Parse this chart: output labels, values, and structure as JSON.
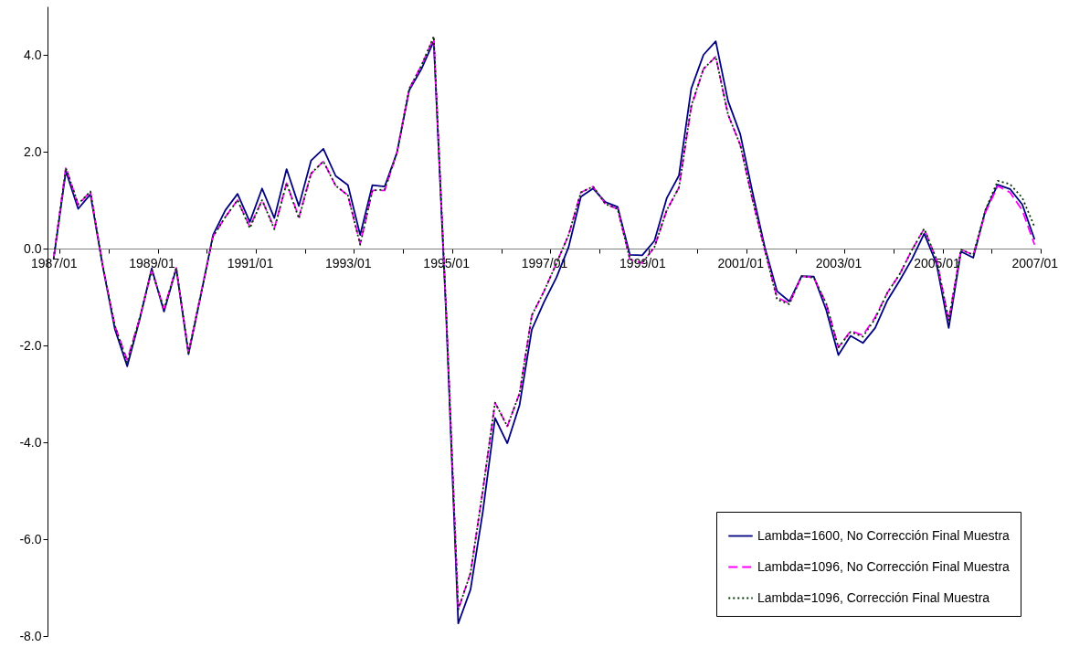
{
  "chart_data": {
    "type": "line",
    "categories": [
      "1987/01",
      null,
      null,
      null,
      null,
      null,
      null,
      null,
      "1989/01",
      null,
      null,
      null,
      null,
      null,
      null,
      null,
      "1991/01",
      null,
      null,
      null,
      null,
      null,
      null,
      null,
      "1993/01",
      null,
      null,
      null,
      null,
      null,
      null,
      null,
      "1995/01",
      null,
      null,
      null,
      null,
      null,
      null,
      null,
      "1997/01",
      null,
      null,
      null,
      null,
      null,
      null,
      null,
      "1999/01",
      null,
      null,
      null,
      null,
      null,
      null,
      null,
      "2001/01",
      null,
      null,
      null,
      null,
      null,
      null,
      null,
      "2003/01",
      null,
      null,
      null,
      null,
      null,
      null,
      null,
      "2005/01",
      null,
      null,
      null,
      null,
      null,
      null,
      null,
      "2007/01"
    ],
    "series": [
      {
        "name": "Lambda=1600, No Corrección Final Muestra",
        "color": "#000080",
        "line_style": "solid",
        "values": [
          -0.22,
          1.6,
          0.82,
          1.12,
          -0.36,
          -1.67,
          -2.43,
          -1.48,
          -0.41,
          -1.3,
          -0.41,
          -2.18,
          -0.97,
          0.28,
          0.79,
          1.13,
          0.55,
          1.24,
          0.63,
          1.64,
          0.88,
          1.82,
          2.06,
          1.5,
          1.31,
          0.28,
          1.31,
          1.28,
          1.98,
          3.27,
          3.71,
          4.28,
          -1.3,
          -7.74,
          -7.04,
          -5.44,
          -3.5,
          -4.02,
          -3.23,
          -1.67,
          -1.1,
          -0.6,
          0.03,
          1.07,
          1.24,
          0.96,
          0.86,
          -0.13,
          -0.14,
          0.16,
          1.04,
          1.51,
          3.3,
          4.0,
          4.28,
          3.05,
          2.36,
          1.16,
          0.03,
          -0.88,
          -1.09,
          -0.57,
          -0.58,
          -1.26,
          -2.2,
          -1.8,
          -1.95,
          -1.64,
          -1.07,
          -0.66,
          -0.22,
          0.31,
          -0.31,
          -1.64,
          -0.06,
          -0.19,
          0.79,
          1.32,
          1.23,
          0.91,
          0.19
        ]
      },
      {
        "name": "Lambda=1096, No Corrección Final Muestra",
        "color": "#ff00ff",
        "line_style": "dashed",
        "values": [
          -0.2,
          1.68,
          0.9,
          1.18,
          -0.35,
          -1.6,
          -2.3,
          -1.45,
          -0.45,
          -1.25,
          -0.4,
          -2.15,
          -0.95,
          0.25,
          0.65,
          1.0,
          0.45,
          1.0,
          0.42,
          1.35,
          0.65,
          1.55,
          1.8,
          1.3,
          1.1,
          0.1,
          1.2,
          1.2,
          1.98,
          3.3,
          3.78,
          4.35,
          -1.2,
          -7.45,
          -6.7,
          -5.0,
          -3.18,
          -3.67,
          -2.99,
          -1.38,
          -0.88,
          -0.31,
          0.28,
          1.16,
          1.28,
          0.92,
          0.82,
          -0.22,
          -0.3,
          0.03,
          0.79,
          1.26,
          2.92,
          3.71,
          3.96,
          2.77,
          2.14,
          1.01,
          -0.03,
          -1.01,
          -1.13,
          -0.57,
          -0.6,
          -1.13,
          -2.04,
          -1.7,
          -1.79,
          -1.42,
          -0.91,
          -0.53,
          -0.03,
          0.41,
          -0.22,
          -1.48,
          -0.02,
          -0.13,
          0.75,
          1.29,
          1.16,
          0.79,
          0.08
        ]
      },
      {
        "name": "Lambda=1096, Corrección Final Muestra",
        "color": "#003300",
        "line_style": "dotted",
        "values": [
          -0.2,
          1.66,
          0.92,
          1.18,
          -0.35,
          -1.6,
          -2.35,
          -1.45,
          -0.45,
          -1.25,
          -0.4,
          -2.15,
          -0.95,
          0.25,
          0.65,
          1.0,
          0.42,
          1.0,
          0.4,
          1.35,
          0.62,
          1.55,
          1.8,
          1.3,
          1.1,
          0.08,
          1.2,
          1.22,
          1.98,
          3.3,
          3.78,
          4.38,
          -1.2,
          -7.45,
          -6.7,
          -5.0,
          -3.18,
          -3.67,
          -2.99,
          -1.38,
          -0.88,
          -0.31,
          0.28,
          1.16,
          1.28,
          0.92,
          0.82,
          -0.22,
          -0.3,
          0.03,
          0.79,
          1.26,
          2.95,
          3.71,
          3.96,
          2.77,
          2.14,
          1.01,
          -0.03,
          -1.05,
          -1.15,
          -0.57,
          -0.6,
          -1.13,
          -2.04,
          -1.72,
          -1.82,
          -1.45,
          -0.91,
          -0.53,
          -0.03,
          0.41,
          -0.22,
          -1.48,
          -0.02,
          -0.13,
          0.8,
          1.4,
          1.33,
          1.05,
          0.45
        ]
      }
    ],
    "ylim": [
      -8,
      5
    ],
    "yticks": [
      {
        "value": -8,
        "label": "-8.0"
      },
      {
        "value": -6,
        "label": "-6.0"
      },
      {
        "value": -4,
        "label": "-4.0"
      },
      {
        "value": -2,
        "label": "-2.0"
      },
      {
        "value": 0,
        "label": "0.0"
      },
      {
        "value": 2,
        "label": "2.0"
      },
      {
        "value": 4,
        "label": "4.0"
      }
    ],
    "grid": false,
    "legend": "bottom right"
  }
}
